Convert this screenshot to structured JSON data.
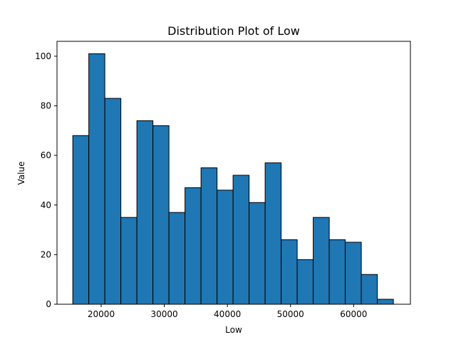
{
  "chart_data": {
    "type": "bar",
    "title": "Distribution Plot of Low",
    "xlabel": "Low",
    "ylabel": "Value",
    "xlim": [
      13000,
      69000
    ],
    "ylim": [
      0,
      106
    ],
    "x_ticks": [
      20000,
      30000,
      40000,
      50000,
      60000
    ],
    "y_ticks": [
      0,
      20,
      40,
      60,
      80,
      100
    ],
    "bin_edges": [
      15500,
      18040,
      20580,
      23120,
      25660,
      28200,
      30740,
      33280,
      35820,
      38360,
      40900,
      43440,
      45980,
      48520,
      51060,
      53600,
      56140,
      58680,
      61220,
      63760,
      66300
    ],
    "values": [
      68,
      101,
      83,
      35,
      74,
      72,
      37,
      47,
      55,
      46,
      52,
      41,
      57,
      26,
      18,
      35,
      26,
      25,
      12,
      2
    ],
    "grid": false,
    "colors": {
      "bar_fill": "#1f77b4",
      "bar_edge": "#000000",
      "axis": "#000000"
    }
  }
}
